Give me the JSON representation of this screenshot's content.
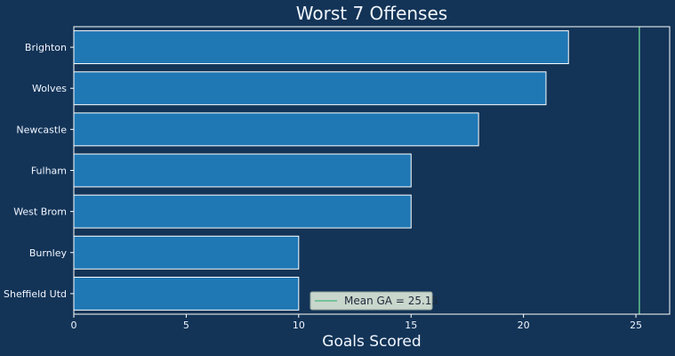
{
  "chart_data": {
    "type": "bar",
    "orientation": "horizontal",
    "title": "Worst 7 Offenses",
    "xlabel": "Goals Scored",
    "ylabel": "",
    "categories": [
      "Brighton",
      "Wolves",
      "Newcastle",
      "Fulham",
      "West Brom",
      "Burnley",
      "Sheffield Utd"
    ],
    "values": [
      22,
      21,
      18,
      15,
      15,
      10,
      10
    ],
    "xlim": [
      0,
      26.5
    ],
    "xticks": [
      0,
      5,
      10,
      15,
      20,
      25
    ],
    "grid": false,
    "legend_position": "bottom-center",
    "reference_line": {
      "label": "Mean GA = 25.15",
      "value": 25.15
    },
    "colors": {
      "background": "#133457",
      "bar_fill": "#1f77b4",
      "bar_edge": "#ffffff",
      "axis": "#ffffff",
      "text": "#f0f5ff",
      "reference_line": "#5dbb8a",
      "legend_bg": "#c9d6cc"
    }
  }
}
